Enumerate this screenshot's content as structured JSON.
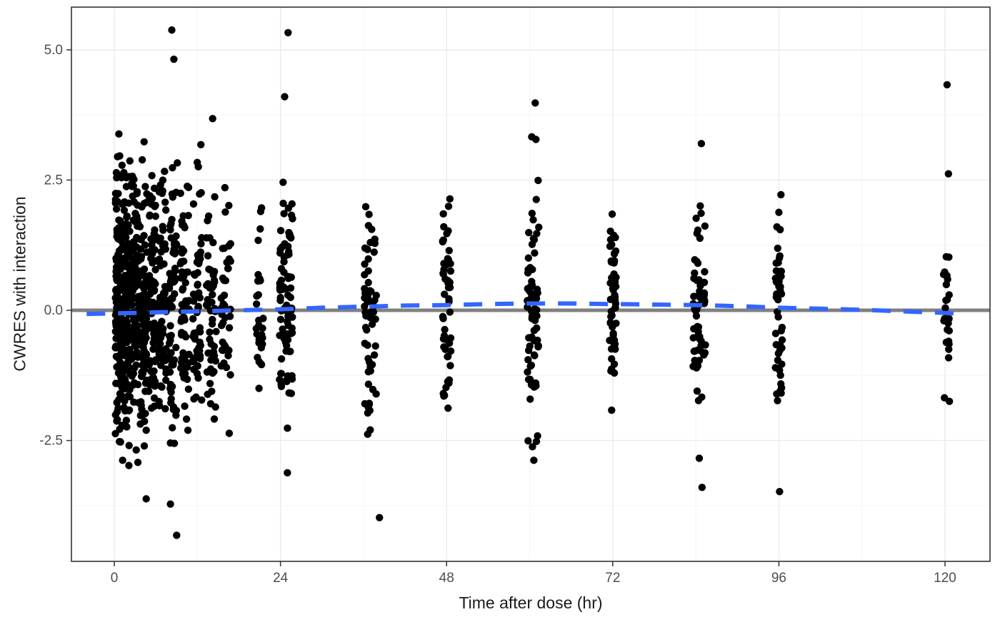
{
  "figure": {
    "xlabel": "Time after dose (hr)",
    "ylabel": "CWRES with interaction"
  },
  "chart_data": {
    "type": "scatter",
    "title": "",
    "xlabel": "Time after dose (hr)",
    "ylabel": "CWRES with interaction",
    "xlim": [
      -6.2,
      126.5
    ],
    "ylim": [
      -4.82,
      5.82
    ],
    "xticks": [
      0,
      24,
      48,
      72,
      96,
      120
    ],
    "xtick_labels": [
      "0",
      "24",
      "48",
      "72",
      "96",
      "120"
    ],
    "yticks": [
      -2.5,
      0.0,
      2.5,
      5.0
    ],
    "ytick_labels": [
      "-2.5",
      "0.0",
      "2.5",
      "5.0"
    ],
    "x_minor_ticks": [
      12,
      36,
      60,
      84,
      108
    ],
    "y_minor_ticks": [
      -3.75,
      -1.25,
      1.25,
      3.75
    ],
    "grid": "on",
    "legend": "none",
    "background": "#FFFFFF",
    "panel_border_color": "#333333",
    "grid_major_color": "#EBEBEB",
    "grid_minor_color": "#F5F5F5",
    "tick_label_color": "#4D4D4D",
    "point_style": {
      "color": "#000000",
      "radius": 5.2
    },
    "reference_line": {
      "y": 0,
      "color": "#808080",
      "width": 5
    },
    "smooth": {
      "kind": "loess",
      "color": "#3366FF",
      "width": 6,
      "dash": [
        26,
        18
      ],
      "points": [
        [
          -4,
          -0.07
        ],
        [
          0,
          -0.06
        ],
        [
          6,
          -0.04
        ],
        [
          12,
          -0.02
        ],
        [
          18,
          0.0
        ],
        [
          24,
          0.02
        ],
        [
          30,
          0.05
        ],
        [
          36,
          0.07
        ],
        [
          42,
          0.09
        ],
        [
          48,
          0.1
        ],
        [
          54,
          0.12
        ],
        [
          60,
          0.13
        ],
        [
          66,
          0.13
        ],
        [
          72,
          0.12
        ],
        [
          78,
          0.11
        ],
        [
          84,
          0.1
        ],
        [
          90,
          0.08
        ],
        [
          96,
          0.05
        ],
        [
          102,
          0.03
        ],
        [
          108,
          0.01
        ],
        [
          114,
          -0.02
        ],
        [
          120,
          -0.05
        ],
        [
          122,
          -0.07
        ]
      ]
    },
    "clusters": [
      {
        "x": 0.7,
        "jitter": 0.55,
        "n": 150,
        "sd": 1.3,
        "clip": [
          -2.8,
          3.4
        ]
      },
      {
        "x": 1.8,
        "jitter": 0.45,
        "n": 110,
        "sd": 1.3,
        "clip": [
          -2.8,
          3.35
        ]
      },
      {
        "x": 3.0,
        "jitter": 0.5,
        "n": 100,
        "sd": 1.28,
        "clip": [
          -2.75,
          3.3
        ]
      },
      {
        "x": 4.2,
        "jitter": 0.5,
        "n": 95,
        "sd": 1.28,
        "clip": [
          -2.7,
          3.25
        ]
      },
      {
        "x": 5.5,
        "jitter": 0.55,
        "n": 85,
        "sd": 1.25,
        "clip": [
          -2.7,
          3.2
        ]
      },
      {
        "x": 7.0,
        "jitter": 0.6,
        "n": 75,
        "sd": 1.25,
        "clip": [
          -2.65,
          3.2
        ]
      },
      {
        "x": 8.5,
        "jitter": 0.6,
        "n": 65,
        "sd": 1.25,
        "clip": [
          -2.6,
          3.1
        ]
      },
      {
        "x": 10.2,
        "jitter": 0.65,
        "n": 60,
        "sd": 1.22,
        "clip": [
          -2.6,
          3.0
        ]
      },
      {
        "x": 12.0,
        "jitter": 0.65,
        "n": 55,
        "sd": 1.2,
        "clip": [
          -2.55,
          2.9
        ]
      },
      {
        "x": 14.0,
        "jitter": 0.7,
        "n": 50,
        "sd": 1.2,
        "clip": [
          -2.5,
          2.9
        ]
      },
      {
        "x": 16.1,
        "jitter": 0.7,
        "n": 40,
        "sd": 1.15,
        "clip": [
          -2.4,
          2.6
        ]
      },
      {
        "x": 21.0,
        "jitter": 0.5,
        "n": 30,
        "sd": 1.1,
        "clip": [
          -1.8,
          2.2
        ]
      },
      {
        "x": 24.8,
        "jitter": 0.95,
        "n": 85,
        "sd": 1.15,
        "clip": [
          -2.3,
          2.9
        ]
      },
      {
        "x": 37.0,
        "jitter": 0.9,
        "n": 60,
        "sd": 1.12,
        "clip": [
          -2.4,
          2.35
        ]
      },
      {
        "x": 48.0,
        "jitter": 0.6,
        "n": 55,
        "sd": 1.1,
        "clip": [
          -2.05,
          2.15
        ]
      },
      {
        "x": 60.5,
        "jitter": 0.85,
        "n": 70,
        "sd": 1.15,
        "clip": [
          -2.55,
          2.6
        ]
      },
      {
        "x": 72.0,
        "jitter": 0.5,
        "n": 55,
        "sd": 1.05,
        "clip": [
          -1.95,
          2.0
        ]
      },
      {
        "x": 84.5,
        "jitter": 0.9,
        "n": 65,
        "sd": 1.1,
        "clip": [
          -2.1,
          2.1
        ]
      },
      {
        "x": 96.0,
        "jitter": 0.5,
        "n": 45,
        "sd": 1.05,
        "clip": [
          -2.15,
          2.25
        ]
      },
      {
        "x": 120.2,
        "jitter": 0.45,
        "n": 26,
        "sd": 0.9,
        "clip": [
          -1.75,
          1.25
        ]
      }
    ],
    "outliers": [
      [
        8.3,
        5.38
      ],
      [
        8.6,
        4.82
      ],
      [
        25.1,
        5.33
      ],
      [
        24.6,
        4.1
      ],
      [
        60.8,
        3.98
      ],
      [
        120.3,
        4.33
      ],
      [
        120.5,
        2.62
      ],
      [
        14.2,
        3.68
      ],
      [
        12.5,
        3.18
      ],
      [
        84.8,
        3.2
      ],
      [
        60.3,
        3.33
      ],
      [
        60.9,
        3.28
      ],
      [
        9.0,
        -4.32
      ],
      [
        8.1,
        -3.72
      ],
      [
        4.6,
        -3.62
      ],
      [
        38.3,
        -3.98
      ],
      [
        25.0,
        -3.12
      ],
      [
        84.9,
        -3.4
      ],
      [
        84.5,
        -2.84
      ],
      [
        96.1,
        -3.48
      ],
      [
        60.6,
        -2.88
      ],
      [
        60.4,
        -2.62
      ],
      [
        2.1,
        -2.98
      ],
      [
        1.2,
        -2.88
      ],
      [
        3.4,
        -2.92
      ],
      [
        36.6,
        -2.38
      ],
      [
        96.3,
        2.22
      ],
      [
        96.0,
        1.88
      ]
    ]
  }
}
